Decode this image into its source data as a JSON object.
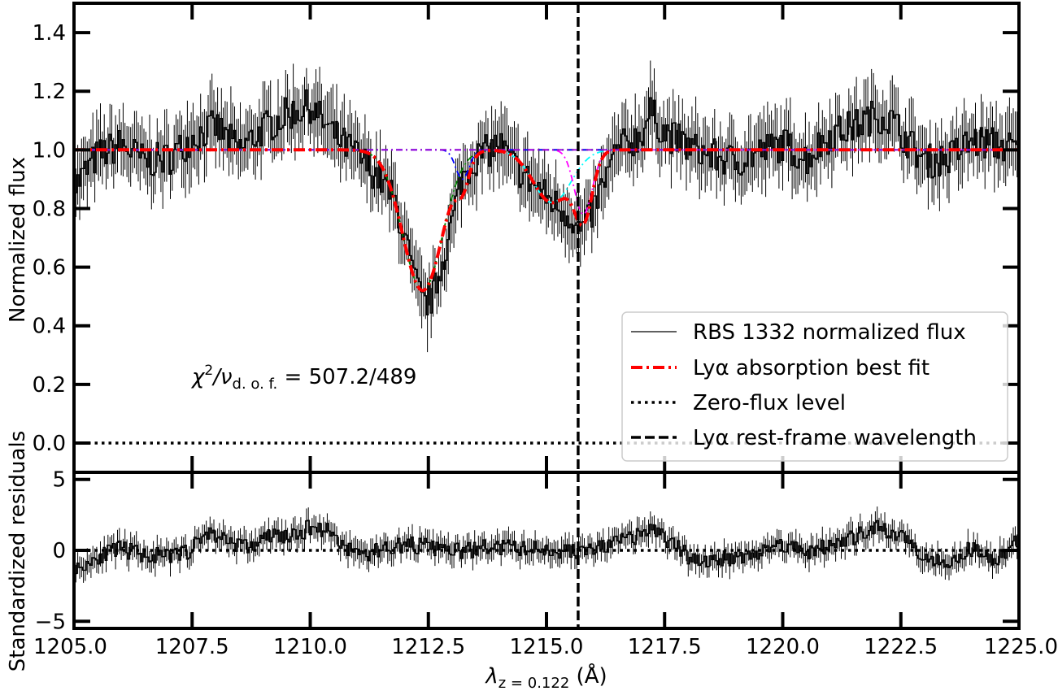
{
  "chart_data": [
    {
      "type": "line",
      "panel": "top",
      "xlabel": "",
      "ylabel": "Normalized flux",
      "xlim": [
        1205.0,
        1225.0
      ],
      "ylim": [
        -0.1,
        1.5
      ],
      "x_ticks": [
        1205.0,
        1207.5,
        1210.0,
        1212.5,
        1215.0,
        1217.5,
        1220.0,
        1222.5,
        1225.0
      ],
      "y_ticks": [
        0.0,
        0.2,
        0.4,
        0.6,
        0.8,
        1.0,
        1.2,
        1.4
      ],
      "y_tick_labels": [
        "0.0",
        "0.2",
        "0.4",
        "0.6",
        "0.8",
        "1.0",
        "1.2",
        "1.4"
      ],
      "annotation": {
        "prefix": "χ",
        "sup": "2",
        "mid": "/ν",
        "sub": "d. o. f.",
        "suffix": " = 507.2/489"
      },
      "legend_position": "lower-right",
      "legend": [
        "RBS 1332 normalized flux",
        "Lyα absorption best fit",
        "Zero-flux level",
        "Lyα rest-frame wavelength"
      ],
      "reference_lines": {
        "zero_flux_y": 0.0,
        "rest_frame_x": 1215.67
      },
      "best_fit_components": [
        {
          "color": "#008000",
          "center": 1212.38,
          "depth": 0.48,
          "sigma": 0.42
        },
        {
          "color": "#0000ff",
          "center": 1213.22,
          "depth": 0.1,
          "sigma": 0.14
        },
        {
          "color": "#00ffff",
          "center": 1215.12,
          "depth": 0.18,
          "sigma": 0.4
        },
        {
          "color": "#ff00ff",
          "center": 1215.78,
          "depth": 0.22,
          "sigma": 0.19
        }
      ],
      "colors": {
        "flux": "#000000",
        "fit": "#ff0000",
        "zero": "#000000",
        "rest": "#000000",
        "fit_baseline": "#9400d3"
      },
      "series": [
        {
          "name": "RBS 1332 normalized flux",
          "x": [
            1205.0,
            1205.5,
            1206.0,
            1206.5,
            1207.0,
            1207.5,
            1208.0,
            1208.5,
            1209.0,
            1209.5,
            1210.0,
            1210.5,
            1211.0,
            1211.5,
            1211.8,
            1212.0,
            1212.2,
            1212.4,
            1212.6,
            1212.8,
            1213.0,
            1213.2,
            1213.5,
            1213.8,
            1214.0,
            1214.3,
            1214.6,
            1215.0,
            1215.3,
            1215.5,
            1215.7,
            1215.9,
            1216.2,
            1216.5,
            1217.0,
            1217.2,
            1217.5,
            1218.0,
            1218.5,
            1219.0,
            1219.5,
            1220.0,
            1220.5,
            1221.0,
            1221.5,
            1222.0,
            1222.3,
            1222.5,
            1223.0,
            1223.5,
            1224.0,
            1224.5,
            1225.0
          ],
          "y": [
            0.87,
            0.98,
            1.02,
            0.96,
            0.97,
            1.04,
            1.08,
            1.0,
            1.07,
            1.12,
            1.15,
            1.05,
            0.98,
            0.9,
            0.82,
            0.7,
            0.56,
            0.47,
            0.5,
            0.62,
            0.75,
            0.9,
            0.97,
            1.0,
            1.02,
            0.95,
            0.9,
            0.84,
            0.8,
            0.78,
            0.72,
            0.76,
            0.88,
            1.0,
            1.05,
            1.13,
            1.06,
            1.01,
            0.98,
            0.96,
            0.99,
            1.02,
            0.97,
            1.05,
            1.08,
            1.12,
            1.1,
            1.06,
            0.96,
            0.97,
            1.03,
            1.02,
            1.0
          ]
        }
      ]
    },
    {
      "type": "line",
      "panel": "bottom",
      "xlabel": "λz = 0.122 (Å)",
      "xlabel_parts": {
        "main": "λ",
        "sub": "z = 0.122",
        "unit": " (Å)"
      },
      "ylabel": "Standardized residuals",
      "xlim": [
        1205.0,
        1225.0
      ],
      "ylim": [
        -5.5,
        5.5
      ],
      "x_ticks": [
        1205.0,
        1207.5,
        1210.0,
        1212.5,
        1215.0,
        1217.5,
        1220.0,
        1222.5,
        1225.0
      ],
      "x_tick_labels": [
        "1205.0",
        "1207.5",
        "1210.0",
        "1212.5",
        "1215.0",
        "1217.5",
        "1220.0",
        "1222.5",
        "1225.0"
      ],
      "y_ticks": [
        -5,
        0,
        5
      ],
      "y_tick_labels": [
        "−5",
        "0",
        "5"
      ],
      "reference_lines": {
        "zero_y": 0,
        "rest_frame_x": 1215.67
      },
      "series": [
        {
          "name": "Standardized residuals",
          "x": [
            1205.0,
            1205.5,
            1206.0,
            1206.5,
            1207.0,
            1207.5,
            1207.8,
            1208.2,
            1208.7,
            1209.2,
            1209.7,
            1210.0,
            1210.4,
            1210.8,
            1211.2,
            1211.7,
            1212.2,
            1212.7,
            1213.2,
            1213.7,
            1214.2,
            1214.7,
            1215.2,
            1215.7,
            1216.2,
            1216.7,
            1217.0,
            1217.2,
            1217.5,
            1218.0,
            1218.5,
            1219.0,
            1219.5,
            1220.0,
            1220.5,
            1221.0,
            1221.5,
            1222.0,
            1222.3,
            1222.6,
            1223.0,
            1223.5,
            1224.0,
            1224.5,
            1225.0
          ],
          "y": [
            -1.5,
            -0.4,
            0.1,
            -0.3,
            -0.5,
            0.1,
            1.3,
            0.8,
            0.2,
            1.1,
            0.9,
            1.7,
            1.4,
            0.1,
            -0.3,
            0.3,
            0.4,
            0.1,
            -0.1,
            0.2,
            0.2,
            0.1,
            0.0,
            -0.1,
            0.2,
            0.8,
            1.0,
            1.6,
            0.9,
            -0.4,
            -0.8,
            -0.4,
            -0.2,
            0.5,
            -0.1,
            0.3,
            0.9,
            1.5,
            1.2,
            0.9,
            -0.4,
            -0.8,
            0.1,
            -0.6,
            0.6
          ]
        }
      ]
    }
  ]
}
